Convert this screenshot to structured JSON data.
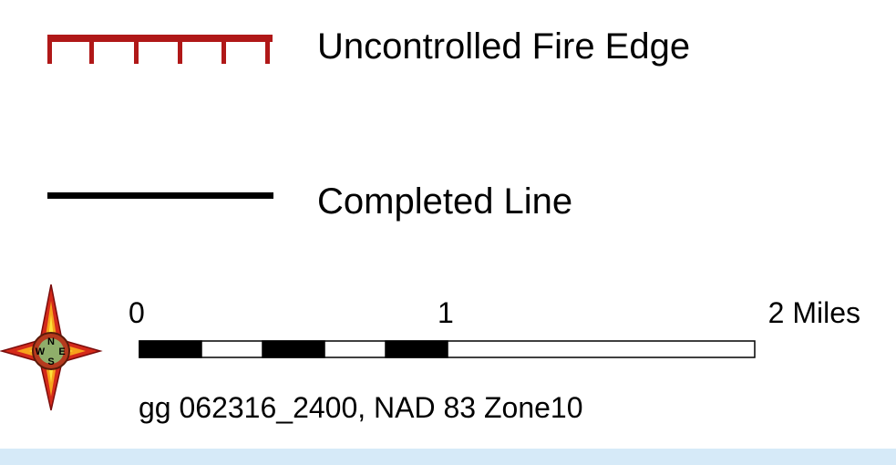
{
  "legend": {
    "items": [
      {
        "label": "Uncontrolled Fire Edge"
      },
      {
        "label": "Completed Line"
      }
    ]
  },
  "scale_bar": {
    "labels": [
      "0",
      "1",
      "2 Miles"
    ]
  },
  "compass": {
    "letters": [
      "N",
      "W",
      "E",
      "S"
    ]
  },
  "caption": "gg 062316_2400, NAD 83 Zone10"
}
